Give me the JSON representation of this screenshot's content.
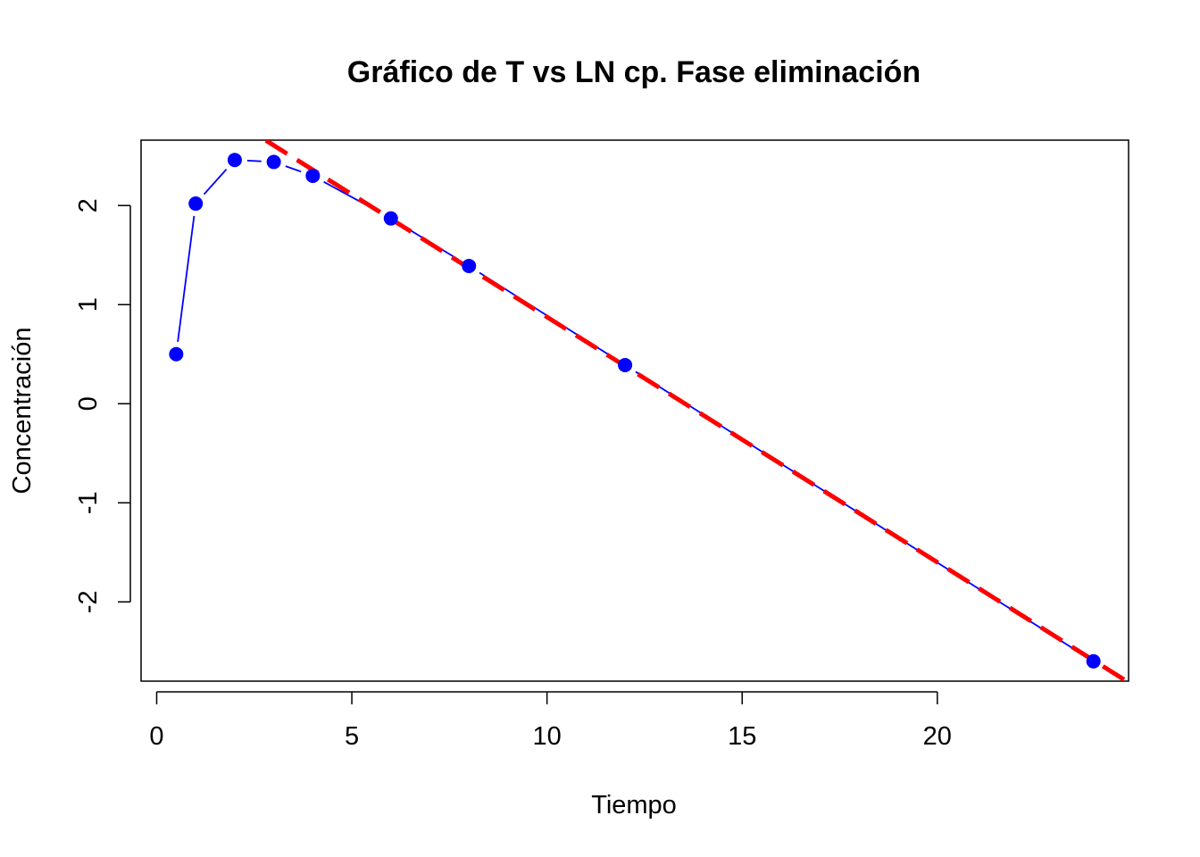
{
  "chart_data": {
    "type": "line",
    "title": "Gráfico de T vs LN cp. Fase eliminación",
    "xlabel": "Tiempo",
    "ylabel": "Concentración",
    "xlim": [
      -0.4,
      24.9
    ],
    "ylim": [
      -2.8,
      2.66
    ],
    "x_ticks": [
      0,
      5,
      10,
      15,
      20
    ],
    "y_ticks": [
      -2,
      -1,
      0,
      1,
      2
    ],
    "x_tick_labels": [
      "0",
      "5",
      "10",
      "15",
      "20"
    ],
    "y_tick_labels": [
      "-2",
      "-1",
      "0",
      "1",
      "2"
    ],
    "series": [
      {
        "name": "observed",
        "style": "points-and-lines",
        "color": "#0000ff",
        "x": [
          0.5,
          1,
          2,
          3,
          4,
          6,
          8,
          12,
          24
        ],
        "y": [
          0.5,
          2.02,
          2.46,
          2.44,
          2.3,
          1.87,
          1.39,
          0.39,
          -2.6
        ]
      },
      {
        "name": "elimination-fit",
        "style": "dashed-line",
        "color": "#ff0000",
        "intercept": 3.35,
        "slope": -0.2475,
        "x_range": [
          2.8,
          24.9
        ]
      }
    ]
  }
}
